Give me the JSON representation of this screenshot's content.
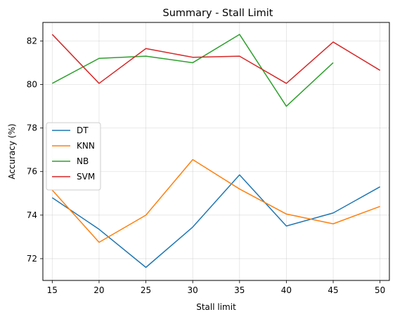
{
  "chart_data": {
    "type": "line",
    "title": "Summary - Stall Limit",
    "xlabel": "Stall limit",
    "ylabel": "Accuracy (%)",
    "x": [
      15,
      20,
      25,
      30,
      35,
      40,
      45,
      50
    ],
    "xticks": [
      "15",
      "20",
      "25",
      "30",
      "35",
      "40",
      "45",
      "50"
    ],
    "yticks": [
      "72",
      "74",
      "76",
      "78",
      "80",
      "82"
    ],
    "xlim": [
      14.0,
      51.0
    ],
    "ylim": [
      71.0,
      82.85
    ],
    "grid": true,
    "legend_position": "center-left",
    "series": [
      {
        "name": "DT",
        "color": "#1f77b4",
        "values": [
          74.8,
          73.35,
          71.6,
          73.45,
          75.85,
          73.5,
          74.1,
          75.3
        ]
      },
      {
        "name": "KNN",
        "color": "#ff7f0e",
        "values": [
          75.15,
          72.75,
          74.0,
          76.55,
          75.2,
          74.05,
          73.6,
          74.4
        ]
      },
      {
        "name": "NB",
        "color": "#2ca02c",
        "values": [
          80.05,
          81.2,
          81.3,
          81.0,
          82.3,
          79.0,
          81.0,
          null
        ]
      },
      {
        "name": "SVM",
        "color": "#d62728",
        "values": [
          82.3,
          80.05,
          81.65,
          81.25,
          81.3,
          80.05,
          81.95,
          80.65
        ]
      }
    ]
  }
}
